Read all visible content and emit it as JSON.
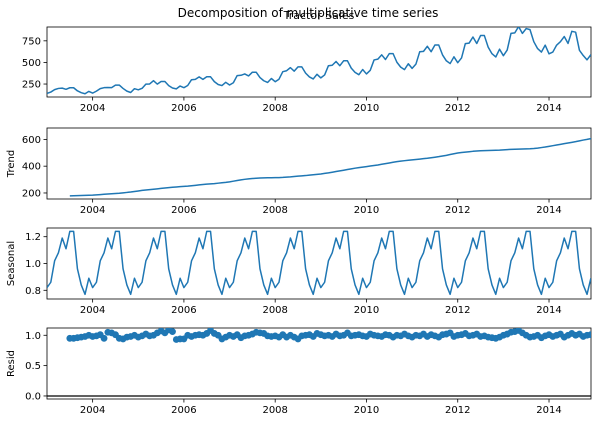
{
  "figure": {
    "suptitle": "Decomposition of multiplicative time series",
    "line_color": "#1f77b4"
  },
  "chart_data": [
    {
      "type": "line",
      "title": "Tractor Sales",
      "ylabel": "",
      "x_start": "2003-01",
      "x_step": "month",
      "xlim": [
        2003.0,
        2014.92
      ],
      "ylim": [
        100,
        910
      ],
      "xticks": [
        "2004",
        "2006",
        "2008",
        "2010",
        "2012",
        "2014"
      ],
      "yticks": [
        "250",
        "500",
        "750"
      ],
      "values": [
        141,
        157,
        185,
        199,
        203,
        189,
        207,
        207,
        171,
        150,
        138,
        165,
        145,
        168,
        197,
        208,
        210,
        209,
        238,
        238,
        199,
        168,
        152,
        196,
        183,
        200,
        249,
        251,
        289,
        249,
        279,
        279,
        232,
        204,
        194,
        227,
        208,
        233,
        300,
        304,
        333,
        304,
        334,
        334,
        278,
        245,
        232,
        270,
        239,
        265,
        348,
        351,
        367,
        344,
        387,
        387,
        325,
        288,
        268,
        314,
        277,
        306,
        393,
        404,
        440,
        399,
        449,
        449,
        376,
        332,
        309,
        363,
        321,
        355,
        462,
        467,
        511,
        462,
        519,
        519,
        434,
        385,
        358,
        418,
        367,
        409,
        529,
        538,
        588,
        534,
        602,
        602,
        502,
        446,
        417,
        485,
        431,
        480,
        623,
        628,
        687,
        624,
        702,
        702,
        587,
        519,
        487,
        565,
        497,
        552,
        718,
        724,
        794,
        719,
        811,
        811,
        677,
        601,
        563,
        653,
        578,
        643,
        836,
        842,
        915,
        836,
        892,
        880,
        740,
        660,
        620,
        700,
        600,
        620,
        700,
        740,
        800,
        720,
        860,
        850,
        640,
        580,
        530,
        590
      ]
    },
    {
      "type": "line",
      "title": "",
      "ylabel": "Trend",
      "x_start": "2003-07",
      "x_step": "month",
      "xlim": [
        2003.0,
        2014.92
      ],
      "ylim": [
        155,
        685
      ],
      "xticks": [
        "2004",
        "2006",
        "2008",
        "2010",
        "2012",
        "2014"
      ],
      "yticks": [
        "200",
        "400",
        "600"
      ],
      "values": [
        178,
        179,
        180,
        181,
        182,
        183,
        184,
        186,
        188,
        190,
        192,
        194,
        196,
        198,
        201,
        204,
        207,
        211,
        215,
        219,
        222,
        225,
        228,
        231,
        234,
        237,
        240,
        243,
        245,
        247,
        249,
        251,
        254,
        257,
        260,
        263,
        266,
        268,
        270,
        273,
        276,
        279,
        283,
        288,
        293,
        298,
        302,
        305,
        308,
        310,
        312,
        313,
        314,
        314,
        315,
        315,
        316,
        318,
        320,
        323,
        326,
        328,
        330,
        333,
        336,
        339,
        342,
        346,
        350,
        355,
        360,
        365,
        370,
        375,
        380,
        385,
        389,
        393,
        397,
        401,
        405,
        409,
        414,
        419,
        424,
        429,
        434,
        438,
        441,
        444,
        447,
        450,
        453,
        456,
        459,
        463,
        467,
        471,
        476,
        481,
        487,
        493,
        498,
        502,
        505,
        508,
        511,
        513,
        515,
        516,
        517,
        518,
        519,
        520,
        522,
        524,
        525,
        526,
        527,
        528,
        529,
        530,
        532,
        535,
        539,
        543,
        548,
        553,
        558,
        563,
        568,
        573,
        578,
        583,
        589,
        595,
        600,
        606,
        611,
        617,
        623,
        629,
        635,
        641,
        646,
        651,
        655,
        659
      ]
    },
    {
      "type": "line",
      "title": "",
      "ylabel": "Seasonal",
      "x_start": "2003-01",
      "x_step": "month",
      "xlim": [
        2003.0,
        2014.92
      ],
      "ylim": [
        0.735,
        1.265
      ],
      "xticks": [
        "2004",
        "2006",
        "2008",
        "2010",
        "2012",
        "2014"
      ],
      "yticks": [
        "0.8",
        "1.0",
        "1.2"
      ],
      "season": [
        0.82,
        0.86,
        1.02,
        1.08,
        1.19,
        1.11,
        1.24,
        1.24,
        0.96,
        0.84,
        0.77,
        0.89
      ]
    },
    {
      "type": "scatter",
      "title": "",
      "ylabel": "Resid",
      "x_start": "2003-07",
      "x_step": "month",
      "xlim": [
        2003.0,
        2014.92
      ],
      "ylim": [
        -0.05,
        1.12
      ],
      "xticks": [
        "2004",
        "2006",
        "2008",
        "2010",
        "2012",
        "2014"
      ],
      "yticks": [
        "0.0",
        "0.5",
        "1.0"
      ],
      "baseline": 0,
      "values": [
        0.95,
        0.95,
        0.96,
        0.97,
        0.98,
        1.0,
        0.98,
        0.99,
        1.01,
        0.95,
        1.05,
        1.04,
        1.01,
        0.95,
        0.94,
        0.97,
        0.98,
        1.0,
        0.97,
        0.99,
        1.02,
        0.99,
        1.0,
        1.04,
        1.07,
        1.04,
        1.09,
        1.06,
        0.93,
        0.94,
        0.94,
        1.0,
        0.98,
        1.0,
        1.01,
        1.0,
        1.03,
        1.08,
        1.03,
        1.0,
        0.94,
        0.97,
        1.0,
        0.98,
        1.01,
        0.96,
        0.99,
        1.0,
        1.02,
        1.05,
        1.04,
        1.03,
        0.99,
        0.98,
        0.99,
        0.97,
        1.01,
        0.97,
        1.0,
        0.97,
        0.94,
        0.99,
        1.0,
        1.01,
        0.98,
        1.03,
        1.01,
        0.99,
        1.0,
        0.98,
        1.02,
        0.99,
        1.0,
        1.04,
        0.99,
        1.0,
        1.01,
        0.99,
        0.98,
        1.02,
        1.0,
        0.99,
        0.98,
        1.01,
        1.0,
        0.97,
        1.0,
        0.99,
        1.02,
        0.99,
        0.97,
        1.0,
        0.99,
        1.02,
        0.98,
        1.01,
        0.99,
        0.97,
        1.01,
        1.02,
        1.04,
        0.98,
        1.0,
        1.01,
        1.03,
        0.99,
        1.0,
        1.02,
        0.98,
        0.99,
        0.97,
        0.96,
        0.95,
        0.97,
        1.0,
        1.02,
        1.05,
        1.06,
        1.08,
        1.04,
        1.0,
        0.97,
        0.98,
        1.0,
        0.96,
        0.99,
        1.01,
        0.98,
        1.0,
        1.02,
        0.97,
        1.0,
        1.03,
        1.0,
        1.02,
        0.98,
        1.0,
        1.01,
        0.94,
        0.98,
        0.97,
        0.99,
        0.88,
        0.99,
        1.01,
        0.98,
        1.0,
        0.99
      ]
    }
  ]
}
